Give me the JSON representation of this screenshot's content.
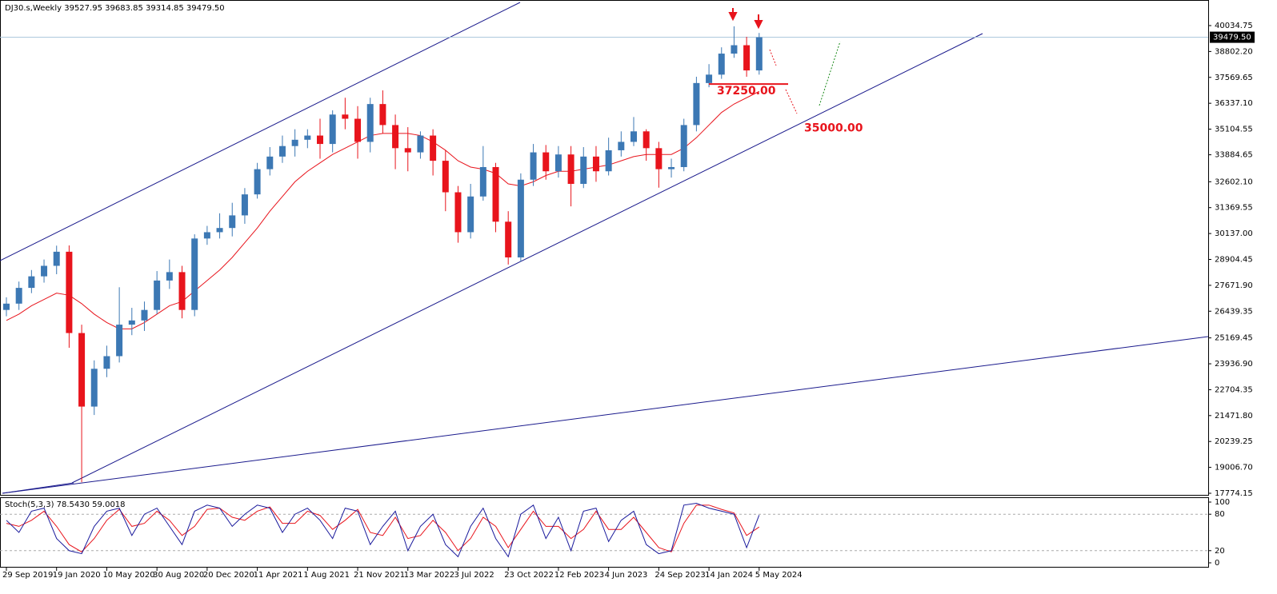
{
  "chart_data": {
    "type": "candlestick",
    "title": "DJ30.s,Weekly  39527.95 39683.85 39314.85 39479.50",
    "categories": [
      "29 Sep 2019",
      null,
      null,
      null,
      "19 Jan 2020",
      null,
      null,
      null,
      "10 May 2020",
      null,
      null,
      null,
      "30 Aug 2020",
      null,
      null,
      null,
      "20 Dec 2020",
      null,
      null,
      null,
      "11 Apr 2021",
      null,
      null,
      null,
      "1 Aug 2021",
      null,
      null,
      null,
      "21 Nov 2021",
      null,
      null,
      null,
      "13 Mar 2022",
      null,
      null,
      null,
      "3 Jul 2022",
      null,
      null,
      null,
      "23 Oct 2022",
      null,
      null,
      null,
      "12 Feb 2023",
      null,
      null,
      null,
      "4 Jun 2023",
      null,
      null,
      null,
      "24 Sep 2023",
      null,
      null,
      null,
      "14 Jan 2024",
      null,
      null,
      null,
      "5 May 2024"
    ],
    "open": [
      26500,
      26800,
      27550,
      28100,
      28600,
      29270,
      25400,
      21900,
      23700,
      24300,
      25800,
      26000,
      26500,
      27900,
      28300,
      26500,
      29900,
      30200,
      30400,
      31000,
      32000,
      33200,
      33800,
      34300,
      34600,
      34800,
      34400,
      35800,
      35600,
      34500,
      36300,
      35300,
      34200,
      34000,
      34800,
      33600,
      32100,
      30200,
      31900,
      33300,
      30700,
      29000,
      32700,
      34000,
      33100,
      33900,
      32500,
      33800,
      33100,
      34100,
      34500,
      35000,
      34200,
      33200,
      33300,
      35300,
      37300,
      37700,
      38700,
      39100,
      37900
    ],
    "high": [
      27100,
      27850,
      28400,
      28900,
      29560,
      29570,
      25800,
      24100,
      24800,
      27580,
      26600,
      26900,
      28350,
      28900,
      28600,
      30100,
      30500,
      31100,
      31600,
      32300,
      33500,
      34250,
      34800,
      35100,
      35100,
      35600,
      36000,
      36600,
      36200,
      36600,
      36950,
      35800,
      35200,
      35000,
      35100,
      34100,
      32400,
      32500,
      34300,
      33500,
      31200,
      33000,
      34400,
      34350,
      34300,
      34300,
      34250,
      34300,
      34700,
      35000,
      35680,
      35100,
      34500,
      33700,
      35600,
      37600,
      38200,
      39000,
      40000,
      39500,
      39683.85
    ],
    "low": [
      26200,
      26500,
      27300,
      27800,
      28200,
      24700,
      18300,
      21500,
      23300,
      24000,
      25300,
      25500,
      26300,
      27500,
      26100,
      26200,
      29600,
      29900,
      30000,
      30600,
      31800,
      32900,
      33500,
      33800,
      34200,
      33700,
      34000,
      35100,
      33700,
      34000,
      34900,
      33200,
      33100,
      33700,
      32900,
      31200,
      29700,
      29900,
      31700,
      30200,
      28660,
      28800,
      32400,
      32700,
      32800,
      31430,
      32300,
      32600,
      32900,
      33800,
      34300,
      33600,
      32320,
      32800,
      33100,
      35000,
      37100,
      37500,
      38500,
      37600,
      37700
    ],
    "close": [
      26800,
      27550,
      28100,
      28600,
      29270,
      25400,
      21900,
      23700,
      24300,
      25800,
      26000,
      26500,
      27900,
      28300,
      26500,
      29900,
      30200,
      30400,
      31000,
      32000,
      33200,
      33800,
      34300,
      34600,
      34800,
      34400,
      35800,
      35600,
      34500,
      36300,
      35300,
      34200,
      34000,
      34800,
      33600,
      32100,
      30200,
      31900,
      33300,
      30700,
      29000,
      32700,
      34000,
      33100,
      33900,
      32500,
      33800,
      33100,
      34100,
      34500,
      35000,
      34200,
      33200,
      33300,
      35300,
      37300,
      37700,
      38700,
      39100,
      37900,
      39479.5
    ],
    "up_color": "#3c78b4",
    "down_color": "#e8141c",
    "ylim": [
      17660,
      41252
    ],
    "yticks": [
      40034.75,
      {
        "value": 38802.2,
        "label": "38802.20"
      },
      37569.65,
      {
        "value": 36337.1,
        "label": "36337.10"
      },
      35104.55,
      33884.65,
      {
        "value": 32602.1,
        "label": "32602.10"
      },
      31369.55,
      {
        "value": 30137,
        "label": "30137.00"
      },
      28904.45,
      {
        "value": 27671.9,
        "label": "27671.90"
      },
      26439.35,
      25169.45,
      {
        "value": 23936.9,
        "label": "23936.90"
      },
      22704.35,
      {
        "value": 21471.8,
        "label": "21471.80"
      },
      20239.25,
      {
        "value": 19006.7,
        "label": "19006.70"
      },
      17774.15
    ],
    "current_price": {
      "value": 39479.5,
      "label": "39479.50"
    },
    "ma": {
      "color": "#e8141c",
      "values": [
        26000,
        26300,
        26700,
        27000,
        27300,
        27200,
        26800,
        26300,
        25900,
        25600,
        25600,
        25900,
        26300,
        26700,
        26900,
        27400,
        27900,
        28400,
        29000,
        29700,
        30400,
        31200,
        31900,
        32600,
        33100,
        33500,
        33900,
        34200,
        34500,
        34800,
        34900,
        34900,
        34900,
        34800,
        34500,
        34100,
        33600,
        33300,
        33200,
        33000,
        32500,
        32400,
        32600,
        32900,
        33100,
        33100,
        33200,
        33300,
        33400,
        33600,
        33800,
        33900,
        33900,
        33900,
        34200,
        34700,
        35300,
        35900,
        36300,
        36600,
        36900
      ]
    },
    "annotations": [
      {
        "value": 37250,
        "label": "37250.00"
      },
      {
        "value": 35000,
        "label": "35000.00"
      }
    ],
    "oscillator": {
      "title": "Stoch(5,3,3) 78.5430 59.0018",
      "ylim": [
        -6.6,
        106.6
      ],
      "yticks": [
        100,
        80,
        20,
        0
      ],
      "levels": [
        80,
        20
      ],
      "series": [
        {
          "color": "#1a1a9c",
          "values": [
            70,
            50,
            85,
            90,
            40,
            20,
            15,
            60,
            85,
            90,
            45,
            80,
            90,
            60,
            30,
            85,
            95,
            90,
            60,
            80,
            95,
            90,
            50,
            80,
            90,
            70,
            40,
            90,
            85,
            30,
            60,
            85,
            20,
            60,
            80,
            30,
            10,
            60,
            90,
            40,
            10,
            80,
            95,
            40,
            75,
            20,
            85,
            90,
            35,
            70,
            85,
            30,
            15,
            20,
            95,
            98,
            90,
            85,
            80,
            25,
            78.543
          ]
        },
        {
          "color": "#e8141c",
          "values": [
            65,
            60,
            70,
            85,
            60,
            30,
            18,
            40,
            70,
            88,
            60,
            65,
            85,
            70,
            45,
            60,
            88,
            90,
            75,
            70,
            85,
            92,
            65,
            65,
            85,
            78,
            55,
            70,
            88,
            50,
            45,
            75,
            40,
            45,
            70,
            50,
            20,
            40,
            75,
            60,
            25,
            55,
            85,
            60,
            60,
            40,
            55,
            85,
            55,
            55,
            75,
            50,
            25,
            18,
            65,
            95,
            95,
            88,
            82,
            45,
            59.0018
          ]
        }
      ]
    }
  }
}
